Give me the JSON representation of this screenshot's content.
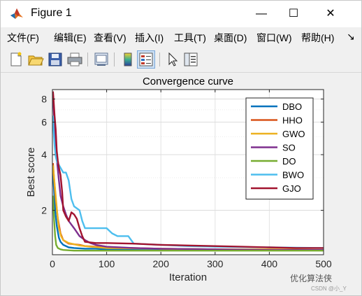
{
  "window": {
    "title": "Figure 1",
    "controls": {
      "minimize": "—",
      "maximize": "☐",
      "close": "✕"
    }
  },
  "menu": [
    {
      "label": "文件(F)"
    },
    {
      "label": "编辑(E)"
    },
    {
      "label": "查看(V)"
    },
    {
      "label": "插入(I)"
    },
    {
      "label": "工具(T)"
    },
    {
      "label": "桌面(D)"
    },
    {
      "label": "窗口(W)"
    },
    {
      "label": "帮助(H)"
    },
    {
      "label": "↘"
    }
  ],
  "toolbar": {
    "buttons": [
      "new-figure-icon",
      "open-file-icon",
      "save-icon",
      "print-icon",
      "link-plot-icon",
      "colorbar-icon",
      "legend-icon",
      "pointer-icon",
      "property-inspector-icon"
    ]
  },
  "watermark": {
    "text": "优化算法侠",
    "sub": "CSDN @小_Y"
  },
  "chart_data": {
    "type": "line",
    "title": "Convergence curve",
    "xlabel": "Iteration",
    "ylabel": "Best score",
    "xlim": [
      0,
      500
    ],
    "ylim": [
      1.15,
      9.0
    ],
    "yscale": "log",
    "xticks": [
      0,
      100,
      200,
      300,
      400,
      500
    ],
    "yticks": [
      2,
      4,
      6,
      8
    ],
    "grid": true,
    "legend_position": "top-right",
    "series": [
      {
        "name": "DBO",
        "color": "#0072BD",
        "x": [
          1,
          3,
          5,
          8,
          12,
          15,
          20,
          30,
          40,
          60,
          80,
          100,
          150,
          200,
          300,
          400,
          500
        ],
        "y": [
          3.2,
          2.6,
          2.0,
          1.65,
          1.42,
          1.35,
          1.3,
          1.26,
          1.25,
          1.24,
          1.24,
          1.23,
          1.23,
          1.23,
          1.22,
          1.22,
          1.22
        ]
      },
      {
        "name": "HHO",
        "color": "#D95319",
        "x": [
          1,
          3,
          6,
          10,
          15,
          20,
          30,
          40,
          50,
          60,
          80,
          100,
          150,
          200,
          300,
          400,
          500
        ],
        "y": [
          3.6,
          3.0,
          2.3,
          1.8,
          1.5,
          1.38,
          1.32,
          1.31,
          1.3,
          1.28,
          1.27,
          1.26,
          1.25,
          1.24,
          1.23,
          1.22,
          1.22
        ]
      },
      {
        "name": "GWO",
        "color": "#EDB120",
        "x": [
          1,
          3,
          6,
          9,
          12,
          16,
          20,
          30,
          40,
          50,
          70,
          100,
          200,
          300,
          400,
          500
        ],
        "y": [
          3.5,
          3.0,
          2.4,
          1.9,
          1.6,
          1.45,
          1.38,
          1.33,
          1.31,
          1.29,
          1.27,
          1.25,
          1.24,
          1.23,
          1.23,
          1.22
        ]
      },
      {
        "name": "SO",
        "color": "#7E2F8E",
        "x": [
          1,
          3,
          5,
          8,
          12,
          15,
          20,
          25,
          30,
          40,
          50,
          60,
          70,
          80,
          100,
          150,
          200,
          300,
          400,
          500
        ],
        "y": [
          8.5,
          6.5,
          5.0,
          3.8,
          2.9,
          2.4,
          2.1,
          1.9,
          1.75,
          1.6,
          1.45,
          1.38,
          1.33,
          1.3,
          1.27,
          1.25,
          1.24,
          1.23,
          1.22,
          1.22
        ]
      },
      {
        "name": "DO",
        "color": "#77AC30",
        "x": [
          1,
          3,
          5,
          7,
          10,
          15,
          20,
          40,
          60,
          100,
          150,
          200,
          300,
          400,
          500
        ],
        "y": [
          2.4,
          1.8,
          1.45,
          1.3,
          1.25,
          1.23,
          1.22,
          1.21,
          1.21,
          1.21,
          1.21,
          1.21,
          1.21,
          1.21,
          1.21
        ]
      },
      {
        "name": "BWO",
        "color": "#4DBEEE",
        "x": [
          1,
          2,
          4,
          6,
          8,
          10,
          15,
          20,
          25,
          30,
          35,
          40,
          50,
          55,
          60,
          80,
          100,
          110,
          120,
          140,
          150,
          200,
          250,
          300,
          400,
          500
        ],
        "y": [
          6.5,
          5.5,
          4.5,
          3.9,
          3.7,
          3.6,
          3.4,
          3.2,
          3.2,
          2.9,
          2.3,
          2.1,
          2.0,
          1.75,
          1.6,
          1.6,
          1.6,
          1.5,
          1.45,
          1.45,
          1.32,
          1.3,
          1.28,
          1.27,
          1.26,
          1.25
        ]
      },
      {
        "name": "GJO",
        "color": "#A2142F",
        "x": [
          1,
          2,
          4,
          6,
          8,
          10,
          12,
          15,
          18,
          20,
          25,
          30,
          35,
          40,
          45,
          50,
          55,
          60,
          80,
          100,
          150,
          200,
          250,
          300,
          350,
          400,
          450,
          500
        ],
        "y": [
          8.8,
          8.0,
          6.5,
          5.5,
          4.2,
          3.7,
          3.4,
          3.1,
          2.5,
          2.0,
          1.85,
          1.75,
          1.95,
          1.9,
          1.8,
          1.6,
          1.45,
          1.35,
          1.33,
          1.33,
          1.32,
          1.3,
          1.29,
          1.28,
          1.27,
          1.26,
          1.25,
          1.25
        ]
      }
    ]
  }
}
